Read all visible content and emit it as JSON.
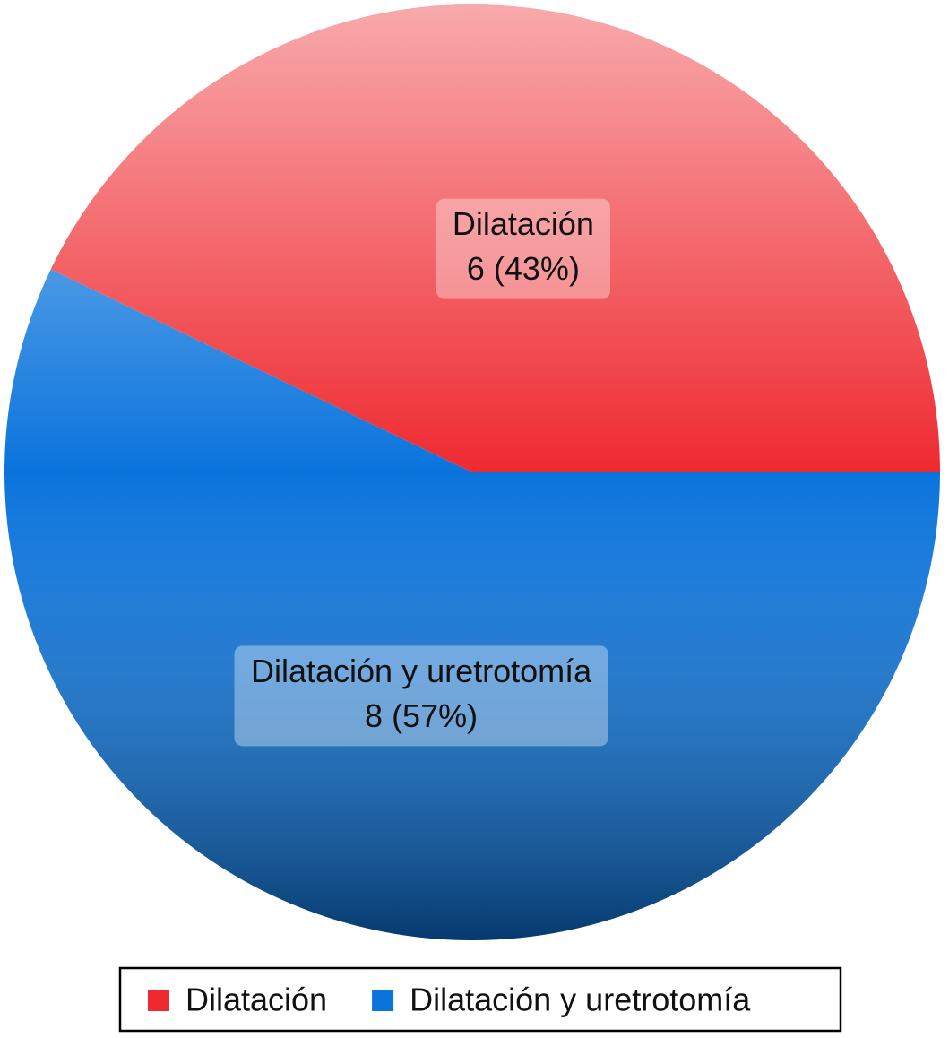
{
  "chart_data": {
    "type": "pie",
    "categories": [
      "Dilatación",
      "Dilatación y uretrotomía"
    ],
    "values": [
      6,
      8
    ],
    "value_labels": [
      "6 (43%)",
      "8 (57%)"
    ],
    "colors": [
      "#ee2a30",
      "#0a74dc"
    ],
    "legend": "bottom"
  }
}
